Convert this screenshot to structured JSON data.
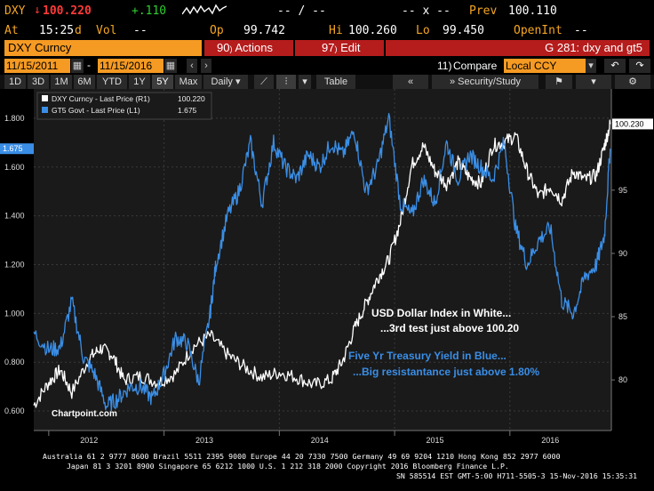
{
  "header": {
    "ticker": "DXY",
    "last_price": "100.220",
    "change": "+.110",
    "prev_label": "Prev",
    "prev_value": "100.110",
    "dashes_mid1": "-- / --",
    "dashes_mid2": "-- x --",
    "at_label": "At",
    "at_time": "15:25",
    "at_d": "d",
    "vol_label": "Vol",
    "vol_value": "--",
    "op_label": "Op",
    "op_value": "99.742",
    "hi_label": "Hi",
    "hi_value": "100.260",
    "lo_label": "Lo",
    "lo_value": "99.450",
    "openint_label": "OpenInt",
    "openint_value": "--"
  },
  "toolbar": {
    "security": "DXY Curncy",
    "actions_num": "90",
    "actions_label": "Actions",
    "edit_num": "97",
    "edit_label": "Edit",
    "chart_title": "G 281: dxy and gt5",
    "date_from": "11/15/2011",
    "date_to": "11/15/2016",
    "compare_num": "11)",
    "compare_label": "Compare",
    "currency": "Local CCY"
  },
  "periods": [
    "1D",
    "3D",
    "1M",
    "6M",
    "YTD",
    "1Y",
    "5Y",
    "Max"
  ],
  "selected_period": "5Y",
  "frequency": "Daily",
  "table_label": "Table",
  "security_study_label": "Security/Study",
  "legend": [
    {
      "label": "DXY Curncy - Last Price (R1)",
      "value": "100.220",
      "color": "#ffffff"
    },
    {
      "label": "GT5 Govt - Last Price (L1)",
      "value": "1.675",
      "color": "#3a8ee6"
    }
  ],
  "chart_data": {
    "type": "line",
    "x_labels": [
      "2012",
      "2013",
      "2014",
      "2015",
      "2016"
    ],
    "left_axis_ticks": [
      "1.800",
      "1.600",
      "1.400",
      "1.200",
      "1.000",
      "0.800",
      "0.600"
    ],
    "right_axis_ticks": [
      "95",
      "90",
      "85",
      "80"
    ],
    "left_badge": "1.675",
    "right_badge": "100.230",
    "series": [
      {
        "name": "DXY Curncy - Last Price (R1)",
        "color": "#ffffff",
        "x": [
          2011.87,
          2012.0,
          2012.1,
          2012.2,
          2012.35,
          2012.45,
          2012.55,
          2012.65,
          2012.8,
          2012.95,
          2013.1,
          2013.25,
          2013.4,
          2013.55,
          2013.7,
          2013.85,
          2014.0,
          2014.15,
          2014.3,
          2014.45,
          2014.55,
          2014.65,
          2014.75,
          2014.85,
          2014.95,
          2015.05,
          2015.15,
          2015.25,
          2015.35,
          2015.45,
          2015.55,
          2015.65,
          2015.75,
          2015.85,
          2015.95,
          2016.05,
          2016.15,
          2016.25,
          2016.35,
          2016.45,
          2016.55,
          2016.65,
          2016.75,
          2016.82,
          2016.87
        ],
        "y": [
          78.0,
          79.8,
          80.8,
          79.0,
          81.7,
          82.5,
          82.0,
          80.0,
          80.3,
          79.8,
          80.5,
          82.6,
          83.5,
          82.0,
          81.0,
          80.2,
          80.6,
          80.2,
          79.6,
          80.0,
          81.5,
          84.0,
          86.0,
          88.0,
          89.5,
          92.5,
          97.0,
          98.5,
          96.5,
          95.5,
          97.2,
          96.0,
          95.5,
          98.5,
          98.8,
          99.3,
          96.5,
          94.5,
          95.3,
          94.2,
          96.5,
          95.8,
          96.2,
          98.5,
          100.22
        ]
      },
      {
        "name": "GT5 Govt - Last Price (L1)",
        "color": "#3a8ee6",
        "x": [
          2011.87,
          2012.0,
          2012.1,
          2012.2,
          2012.3,
          2012.4,
          2012.5,
          2012.6,
          2012.7,
          2012.8,
          2012.9,
          2013.0,
          2013.1,
          2013.2,
          2013.3,
          2013.4,
          2013.45,
          2013.55,
          2013.65,
          2013.75,
          2013.85,
          2013.95,
          2014.05,
          2014.15,
          2014.25,
          2014.35,
          2014.45,
          2014.55,
          2014.65,
          2014.75,
          2014.85,
          2014.95,
          2015.05,
          2015.15,
          2015.25,
          2015.35,
          2015.45,
          2015.55,
          2015.65,
          2015.75,
          2015.85,
          2015.95,
          2016.05,
          2016.15,
          2016.25,
          2016.35,
          2016.45,
          2016.55,
          2016.65,
          2016.75,
          2016.82,
          2016.87
        ],
        "y": [
          0.92,
          0.85,
          0.86,
          1.05,
          0.82,
          0.75,
          0.62,
          0.65,
          0.7,
          0.7,
          0.65,
          0.75,
          0.9,
          0.88,
          0.72,
          1.0,
          1.2,
          1.4,
          1.5,
          1.7,
          1.45,
          1.7,
          1.6,
          1.55,
          1.65,
          1.6,
          1.7,
          1.65,
          1.75,
          1.5,
          1.6,
          1.8,
          1.45,
          1.4,
          1.55,
          1.45,
          1.7,
          1.55,
          1.65,
          1.6,
          1.55,
          1.7,
          1.35,
          1.2,
          1.3,
          1.35,
          1.05,
          1.0,
          1.15,
          1.2,
          1.32,
          1.675
        ]
      }
    ],
    "annotations": [
      {
        "text": "USD Dollar Index in White...",
        "color": "#ffffff"
      },
      {
        "text": "...3rd test just above 100.20",
        "color": "#ffffff"
      },
      {
        "text": "Five Yr Treasury Yield in Blue...",
        "color": "#3a8ee6"
      },
      {
        "text": "...Big resistantance just above 1.80%",
        "color": "#3a8ee6"
      }
    ],
    "watermark": "Chartpoint.com"
  },
  "footer": {
    "line1": "Australia 61 2 9777 8600 Brazil 5511 2395 9000 Europe 44 20 7330 7500 Germany 49 69 9204 1210 Hong Kong 852 2977 6000",
    "line2": "Japan 81 3 3201 8900     Singapore 65 6212 1000     U.S. 1 212 318 2000           Copyright 2016 Bloomberg Finance L.P.",
    "line3": "SN 585514 EST  GMT-5:00 H711-5505-3 15-Nov-2016 15:35:31"
  }
}
